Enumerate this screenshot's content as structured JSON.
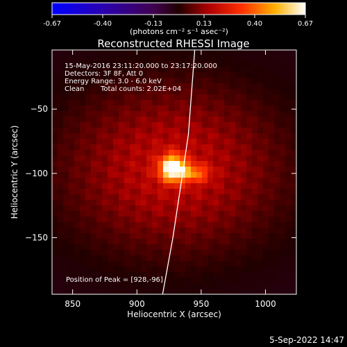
{
  "chart_data": {
    "type": "heatmap",
    "title": "Reconstructed RHESSI Image",
    "xlabel": "Heliocentric X (arcsec)",
    "ylabel": "Heliocentric Y (arcsec)",
    "xlim": [
      834,
      1024
    ],
    "ylim": [
      -194,
      -4
    ],
    "x_ticks": [
      850,
      900,
      950,
      1000
    ],
    "y_ticks": [
      -50,
      -100,
      -150
    ],
    "colorbar": {
      "range": [
        -0.67,
        0.67
      ],
      "ticks": [
        "-0.67",
        "-0.40",
        "-0.13",
        "0.13",
        "0.40",
        "0.67"
      ],
      "unit_label": "(photons cm⁻² s⁻¹ asec⁻²)",
      "colormap": "blue-black-red-yellow-white"
    },
    "annotations": {
      "time_range": "15-May-2016 23:11:20.000 to 23:17:20.000",
      "detectors": "Detectors: 3F 8F, Att 0",
      "energy_range": "Energy Range: 3.0 - 6.0 keV",
      "method": "Clean",
      "total_counts": "Total counts: 2.02E+04",
      "peak_position": "Position of Peak = [928,-96]"
    },
    "peak": {
      "x": 928,
      "y": -96
    },
    "secondary_source": {
      "x": 945,
      "y": -100
    },
    "limb_curve": [
      [
        945,
        -4
      ],
      [
        940,
        -70
      ],
      [
        934,
        -110
      ],
      [
        928,
        -150
      ],
      [
        920,
        -194
      ]
    ]
  },
  "footer_date": "5-Sep-2022 14:47"
}
